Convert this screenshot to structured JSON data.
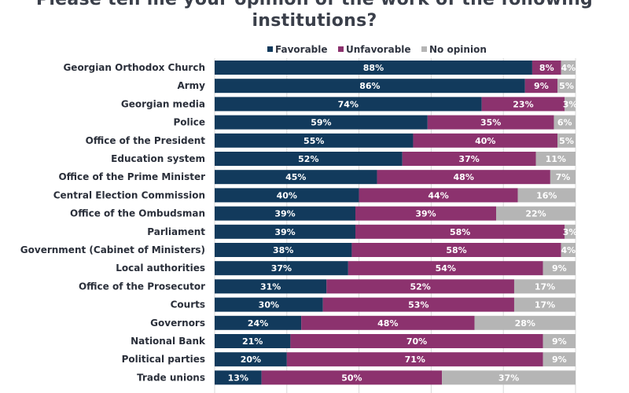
{
  "title_lines": [
    "Please tell me your opinion of the work of the following",
    "institutions?"
  ],
  "chart_data": {
    "type": "bar",
    "orientation": "horizontal",
    "stacked": true,
    "title": "Please tell me your opinion of the work of the following institutions?",
    "xlim": [
      0,
      100
    ],
    "grid": true,
    "legend_position": "top",
    "categories": [
      "Georgian Orthodox Church",
      "Army",
      "Georgian media",
      "Police",
      "Office of the President",
      "Education system",
      "Office of the Prime Minister",
      "Central Election Commission",
      "Office of the Ombudsman",
      "Parliament",
      "Government (Cabinet of Ministers)",
      "Local authorities",
      "Office of the Prosecutor",
      "Courts",
      "Governors",
      "National Bank",
      "Political parties",
      "Trade unions"
    ],
    "series": [
      {
        "name": "Favorable",
        "color": "#123a5c",
        "values": [
          88,
          86,
          74,
          59,
          55,
          52,
          45,
          40,
          39,
          39,
          38,
          37,
          31,
          30,
          24,
          21,
          20,
          13
        ]
      },
      {
        "name": "Unfavorable",
        "color": "#8c326e",
        "values": [
          8,
          9,
          23,
          35,
          40,
          37,
          48,
          44,
          39,
          58,
          58,
          54,
          52,
          53,
          48,
          70,
          71,
          50
        ]
      },
      {
        "name": "No opinion",
        "color": "#b5b5b5",
        "values": [
          4,
          5,
          3,
          6,
          5,
          11,
          7,
          16,
          22,
          3,
          4,
          9,
          17,
          17,
          28,
          9,
          9,
          37
        ]
      }
    ],
    "value_suffix": "%"
  }
}
